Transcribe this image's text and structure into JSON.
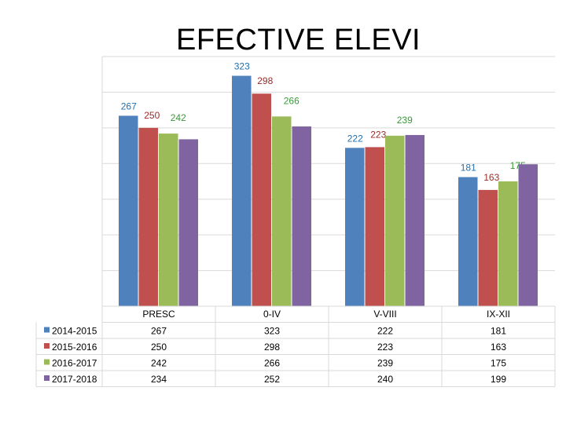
{
  "chart_data": {
    "type": "bar",
    "title": "EFECTIVE ELEVI",
    "categories": [
      "PRESC",
      "0-IV",
      "V-VIII",
      "IX-XII"
    ],
    "series": [
      {
        "name": "2014-2015",
        "color": "#4f81bd",
        "label_color": "#1f6fb0",
        "values": [
          267,
          323,
          222,
          181
        ]
      },
      {
        "name": "2015-2016",
        "color": "#c0504d",
        "label_color": "#9c2a28",
        "values": [
          250,
          298,
          223,
          163
        ]
      },
      {
        "name": "2016-2017",
        "color": "#9bbb59",
        "label_color": "#3a9a3a",
        "values": [
          242,
          266,
          239,
          175
        ]
      },
      {
        "name": "2017-2018",
        "color": "#8064a2",
        "label_color": "#6a4c8a",
        "values": [
          234,
          252,
          240,
          199
        ]
      }
    ],
    "data_labels": [
      [
        267,
        250,
        242,
        null
      ],
      [
        323,
        298,
        266,
        null
      ],
      [
        222,
        223,
        239,
        null
      ],
      [
        181,
        163,
        175,
        null
      ]
    ],
    "ylim": [
      0,
      350
    ],
    "grid": true,
    "legend": "table-left"
  }
}
